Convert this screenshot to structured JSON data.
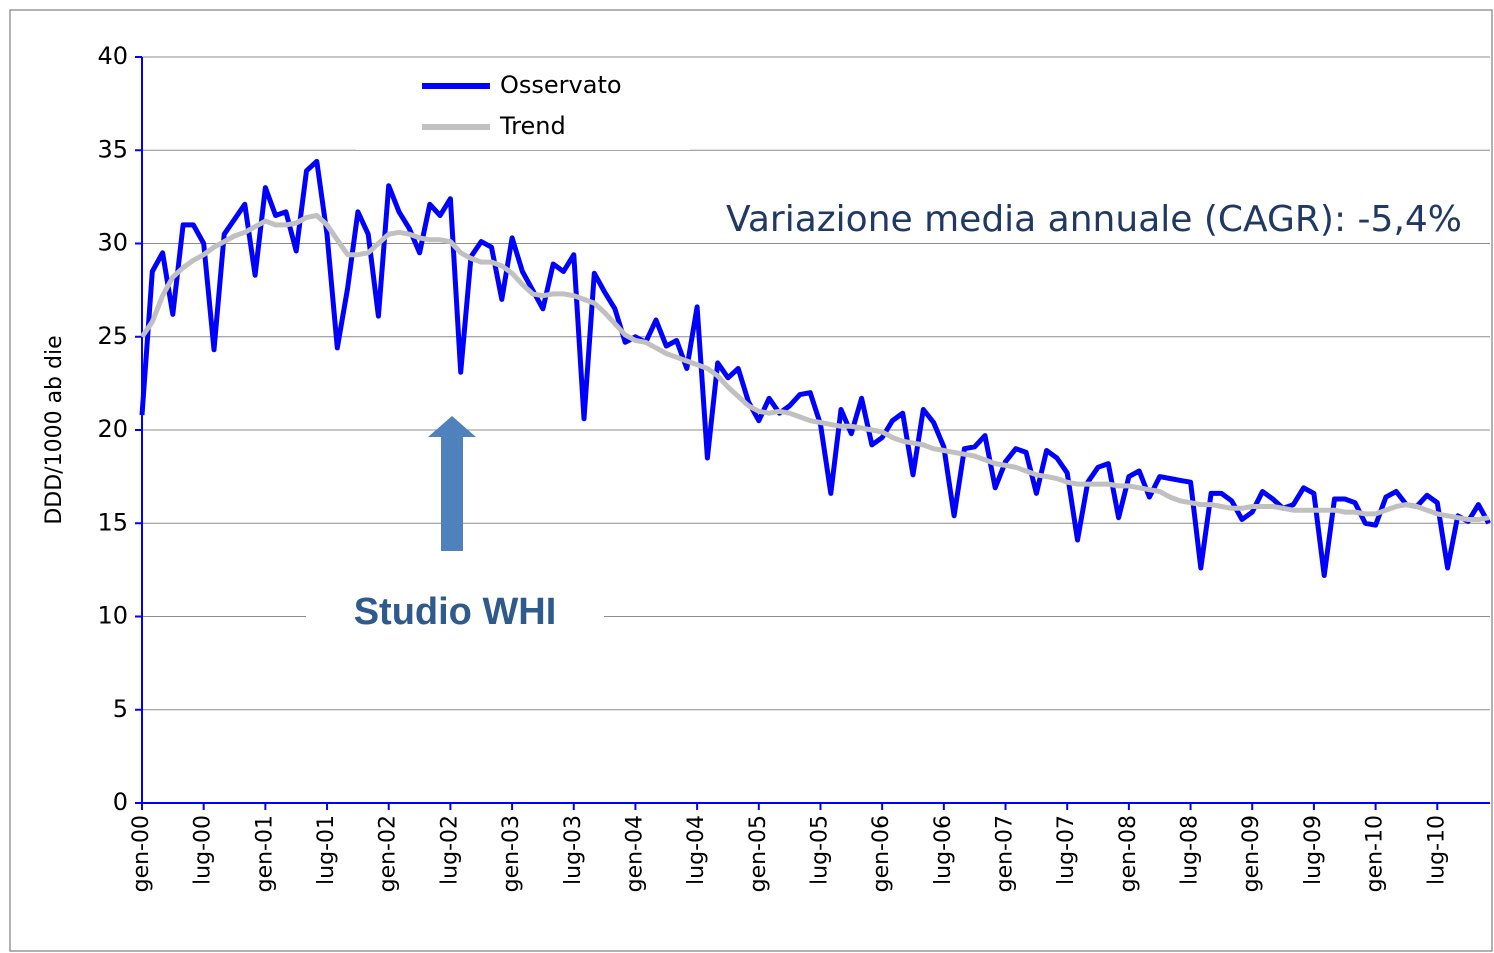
{
  "chart_data": {
    "type": "line",
    "y_label": "DDD/1000 ab die",
    "annotations": [
      {
        "text": "Variazione media annuale (CAGR): -5,4%"
      },
      {
        "text": "Studio WHI"
      }
    ],
    "ylim": [
      0,
      40
    ],
    "yticks": [
      0,
      5,
      10,
      15,
      20,
      25,
      30,
      35,
      40
    ],
    "grid": true,
    "legend": "upper left",
    "categories": [
      "gen-00",
      null,
      null,
      null,
      null,
      null,
      "lug-00",
      null,
      null,
      null,
      null,
      null,
      "gen-01",
      null,
      null,
      null,
      null,
      null,
      "lug-01",
      null,
      null,
      null,
      null,
      null,
      "gen-02",
      null,
      null,
      null,
      null,
      null,
      "lug-02",
      null,
      null,
      null,
      null,
      null,
      "gen-03",
      null,
      null,
      null,
      null,
      null,
      "lug-03",
      null,
      null,
      null,
      null,
      null,
      "gen-04",
      null,
      null,
      null,
      null,
      null,
      "lug-04",
      null,
      null,
      null,
      null,
      null,
      "gen-05",
      null,
      null,
      null,
      null,
      null,
      "lug-05",
      null,
      null,
      null,
      null,
      null,
      "gen-06",
      null,
      null,
      null,
      null,
      null,
      "lug-06",
      null,
      null,
      null,
      null,
      null,
      "gen-07",
      null,
      null,
      null,
      null,
      null,
      "lug-07",
      null,
      null,
      null,
      null,
      null,
      "gen-08",
      null,
      null,
      null,
      null,
      null,
      "lug-08",
      null,
      null,
      null,
      null,
      null,
      "gen-09",
      null,
      null,
      null,
      null,
      null,
      "lug-09",
      null,
      null,
      null,
      null,
      null,
      "gen-10",
      null,
      null,
      null,
      null,
      null,
      "lug-10",
      null,
      null,
      null,
      null,
      null
    ],
    "series": [
      {
        "name": "Osservato",
        "color": "#0000ff",
        "values": [
          20.8,
          28.5,
          29.5,
          26.2,
          31.0,
          31.0,
          30.0,
          24.3,
          30.5,
          31.3,
          32.1,
          28.3,
          33.0,
          31.5,
          31.7,
          29.6,
          33.9,
          34.4,
          30.5,
          24.4,
          27.6,
          31.7,
          30.5,
          26.1,
          33.1,
          31.7,
          30.8,
          29.5,
          32.1,
          31.5,
          32.4,
          23.1,
          29.3,
          30.1,
          29.8,
          27.0,
          30.3,
          28.5,
          27.5,
          26.5,
          28.9,
          28.5,
          29.4,
          20.6,
          28.4,
          27.4,
          26.5,
          24.7,
          25.0,
          24.7,
          25.9,
          24.5,
          24.8,
          23.3,
          26.6,
          18.5,
          23.6,
          22.8,
          23.3,
          21.5,
          20.5,
          21.7,
          20.9,
          21.3,
          21.9,
          22.0,
          20.3,
          16.6,
          21.1,
          19.8,
          21.7,
          19.2,
          19.6,
          20.5,
          20.9,
          17.6,
          21.1,
          20.4,
          19.1,
          15.4,
          19.0,
          19.1,
          19.7,
          16.9,
          18.3,
          19.0,
          18.8,
          16.6,
          18.9,
          18.5,
          17.7,
          14.1,
          17.2,
          18.0,
          18.2,
          15.3,
          17.5,
          17.8,
          16.4,
          17.5,
          17.4,
          17.3,
          17.2,
          12.6,
          16.6,
          16.6,
          16.2,
          15.2,
          15.6,
          16.7,
          16.3,
          15.8,
          16.0,
          16.9,
          16.6,
          12.2,
          16.3,
          16.3,
          16.1,
          15.0,
          14.9,
          16.4,
          16.7,
          16.0,
          15.9,
          16.5,
          16.1,
          12.6,
          15.4,
          15.1,
          16.0,
          15.0
        ]
      },
      {
        "name": "Trend",
        "color": "#c0c0c0",
        "values": [
          25.0,
          25.8,
          27.2,
          28.2,
          28.7,
          29.1,
          29.4,
          29.8,
          30.1,
          30.4,
          30.6,
          30.9,
          31.2,
          31.0,
          31.0,
          31.1,
          31.4,
          31.5,
          31.0,
          30.2,
          29.4,
          29.4,
          29.5,
          30.0,
          30.5,
          30.6,
          30.5,
          30.3,
          30.2,
          30.2,
          30.1,
          29.5,
          29.2,
          29.0,
          29.0,
          28.8,
          28.4,
          27.8,
          27.3,
          27.2,
          27.3,
          27.3,
          27.2,
          27.0,
          26.8,
          26.3,
          25.7,
          25.1,
          24.8,
          24.7,
          24.4,
          24.1,
          23.9,
          23.7,
          23.5,
          23.3,
          22.9,
          22.3,
          21.8,
          21.3,
          21.0,
          20.9,
          21.0,
          20.9,
          20.7,
          20.5,
          20.4,
          20.3,
          20.2,
          20.2,
          20.1,
          20.0,
          19.9,
          19.6,
          19.4,
          19.3,
          19.2,
          19.0,
          18.9,
          18.8,
          18.7,
          18.6,
          18.4,
          18.2,
          18.1,
          18.0,
          17.8,
          17.6,
          17.5,
          17.4,
          17.2,
          17.1,
          17.1,
          17.1,
          17.1,
          17.0,
          17.0,
          16.9,
          16.8,
          16.7,
          16.4,
          16.2,
          16.1,
          16.0,
          16.0,
          15.9,
          15.8,
          15.8,
          15.9,
          15.9,
          15.9,
          15.8,
          15.7,
          15.7,
          15.7,
          15.7,
          15.7,
          15.6,
          15.6,
          15.5,
          15.5,
          15.7,
          15.9,
          16.0,
          15.9,
          15.7,
          15.5,
          15.4,
          15.3,
          15.2,
          15.2,
          15.3
        ]
      }
    ]
  }
}
